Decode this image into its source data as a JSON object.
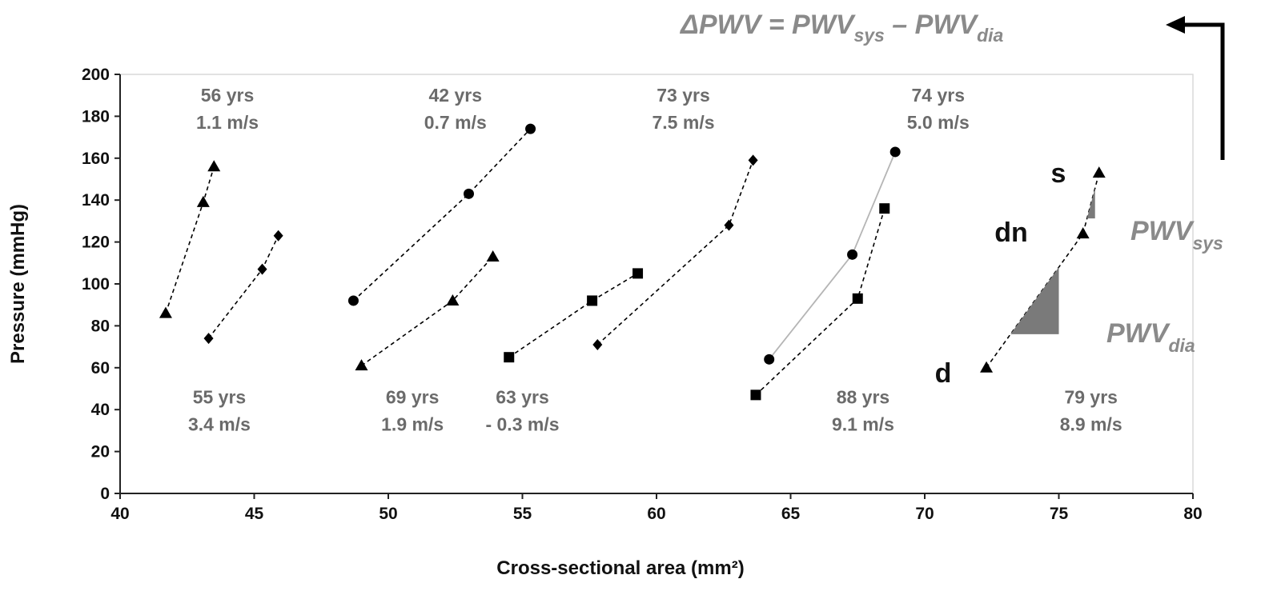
{
  "chart_data": {
    "type": "scatter",
    "xlabel": "Cross-sectional area (mm²)",
    "ylabel": "Pressure (mmHg)",
    "xlim": [
      40,
      80
    ],
    "ylim": [
      0,
      200
    ],
    "xticks": [
      "40",
      "45",
      "50",
      "55",
      "60",
      "65",
      "70",
      "75",
      "80"
    ],
    "yticks": [
      "0",
      "20",
      "40",
      "60",
      "80",
      "100",
      "120",
      "140",
      "160",
      "180",
      "200"
    ],
    "grid": false,
    "legend": "none",
    "series": [
      {
        "marker": "triangle",
        "points": [
          [
            41.7,
            86
          ],
          [
            43.1,
            139
          ],
          [
            43.5,
            156
          ]
        ]
      },
      {
        "marker": "diamond",
        "points": [
          [
            43.3,
            74
          ],
          [
            45.3,
            107
          ],
          [
            45.9,
            123
          ]
        ]
      },
      {
        "marker": "circle",
        "points": [
          [
            48.7,
            92
          ],
          [
            53.0,
            143
          ],
          [
            55.3,
            174
          ]
        ]
      },
      {
        "marker": "triangle",
        "points": [
          [
            49.0,
            61
          ],
          [
            52.4,
            92
          ],
          [
            53.9,
            113
          ]
        ]
      },
      {
        "marker": "square",
        "points": [
          [
            54.5,
            65
          ],
          [
            57.6,
            92
          ],
          [
            59.3,
            105
          ]
        ]
      },
      {
        "marker": "diamond",
        "points": [
          [
            57.8,
            71
          ],
          [
            62.7,
            128
          ],
          [
            63.6,
            159
          ]
        ]
      },
      {
        "marker": "circle",
        "line": "solid-gray",
        "points": [
          [
            64.2,
            64
          ],
          [
            67.3,
            114
          ],
          [
            68.9,
            163
          ]
        ]
      },
      {
        "marker": "square",
        "points": [
          [
            63.7,
            47
          ],
          [
            67.5,
            93
          ],
          [
            68.5,
            136
          ]
        ]
      },
      {
        "marker": "triangle",
        "points": [
          [
            72.3,
            60
          ],
          [
            75.9,
            124
          ],
          [
            76.5,
            153
          ]
        ]
      }
    ],
    "annotations": [
      {
        "age": "56 yrs",
        "pwv": "1.1 m/s",
        "at": [
          44.0,
          187
        ]
      },
      {
        "age": "42 yrs",
        "pwv": "0.7 m/s",
        "at": [
          52.5,
          187
        ]
      },
      {
        "age": "73 yrs",
        "pwv": "7.5 m/s",
        "at": [
          61.0,
          187
        ]
      },
      {
        "age": "74 yrs",
        "pwv": "5.0 m/s",
        "at": [
          70.5,
          187
        ]
      },
      {
        "age": "55 yrs",
        "pwv": "3.4 m/s",
        "at": [
          43.7,
          43
        ]
      },
      {
        "age": "69 yrs",
        "pwv": "1.9 m/s",
        "at": [
          50.9,
          43
        ]
      },
      {
        "age": "63 yrs",
        "pwv": "- 0.3 m/s",
        "at": [
          55.0,
          43
        ]
      },
      {
        "age": "88 yrs",
        "pwv": "9.1 m/s",
        "at": [
          67.7,
          43
        ]
      },
      {
        "age": "79 yrs",
        "pwv": "8.9 m/s",
        "at": [
          76.2,
          43
        ]
      }
    ],
    "point_labels": {
      "s": "s",
      "dn": "dn",
      "d": "d"
    },
    "pwv_labels": {
      "sys_main": "PWV",
      "sys_sub": "sys",
      "dia_main": "PWV",
      "dia_sub": "dia"
    },
    "formula": {
      "lhs": "ΔPWV = PWV",
      "sub1": "sys",
      "mid": " – PWV",
      "sub2": "dia"
    },
    "colors": {
      "marker": "#000000",
      "annotation": "#6b6b6b",
      "pwv_label": "#8a8a8a",
      "slope_fill": "#7a7a7a",
      "gray_line": "#b5b5b5",
      "plot_border": "#d9d9d9"
    }
  }
}
